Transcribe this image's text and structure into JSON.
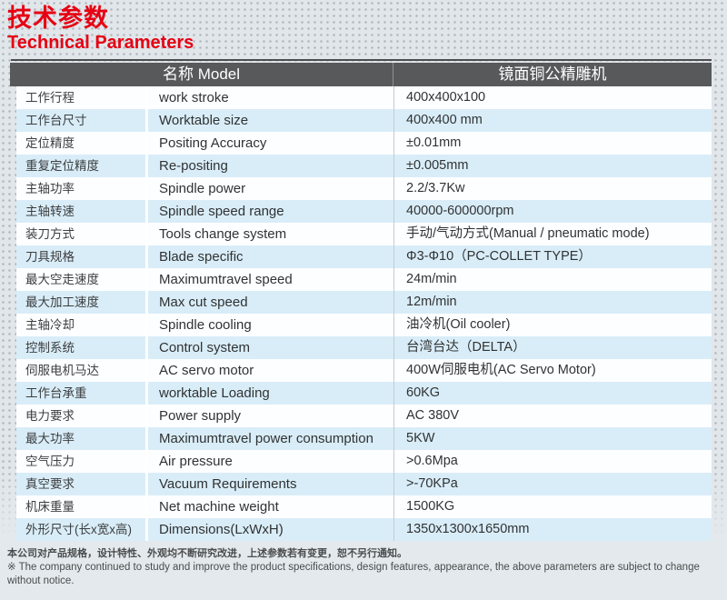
{
  "page": {
    "title_zh": "技术参数",
    "title_en": "Technical Parameters"
  },
  "colors": {
    "accent_red": "#e60012",
    "header_gray": "#58595b",
    "row_blue": "#d9edf8",
    "background": "#e1e6ea"
  },
  "table": {
    "header": {
      "model_label": "名称 Model",
      "model_value": "镜面铜公精雕机"
    },
    "rows": [
      {
        "zh": "工作行程",
        "en": "work stroke",
        "value": "400x400x100"
      },
      {
        "zh": "工作台尺寸",
        "en": "Worktable size",
        "value": "400x400 mm"
      },
      {
        "zh": "定位精度",
        "en": "Positing Accuracy",
        "value": "±0.01mm"
      },
      {
        "zh": "重复定位精度",
        "en": "Re-positing",
        "value": "±0.005mm"
      },
      {
        "zh": "主轴功率",
        "en": "Spindle power",
        "value": "2.2/3.7Kw"
      },
      {
        "zh": "主轴转速",
        "en": "Spindle speed range",
        "value": "40000-600000rpm"
      },
      {
        "zh": "装刀方式",
        "en": "Tools change system",
        "value": "手动/气动方式(Manual / pneumatic mode)"
      },
      {
        "zh": "刀具规格",
        "en": "Blade specific",
        "value": "Φ3-Φ10（PC-COLLET TYPE）"
      },
      {
        "zh": "最大空走速度",
        "en": "Maximumtravel speed",
        "value": "24m/min"
      },
      {
        "zh": "最大加工速度",
        "en": "Max cut speed",
        "value": "12m/min"
      },
      {
        "zh": "主轴冷却",
        "en": "Spindle cooling",
        "value": "油冷机(Oil cooler)"
      },
      {
        "zh": "控制系统",
        "en": "Control system",
        "value": "台湾台达（DELTA）"
      },
      {
        "zh": "伺服电机马达",
        "en": "AC servo motor",
        "value": "400W伺服电机(AC Servo Motor)"
      },
      {
        "zh": "工作台承重",
        "en": "worktable Loading",
        "value": "60KG"
      },
      {
        "zh": "电力要求",
        "en": "Power supply",
        "value": "AC 380V"
      },
      {
        "zh": "最大功率",
        "en": "Maximumtravel power consumption",
        "value": "5KW"
      },
      {
        "zh": "空气压力",
        "en": "Air pressure",
        "value": ">0.6Mpa"
      },
      {
        "zh": "真空要求",
        "en": "Vacuum Requirements",
        "value": ">-70KPa"
      },
      {
        "zh": "机床重量",
        "en": "Net machine weight",
        "value": "1500KG"
      },
      {
        "zh": "外形尺寸(长x宽x高)",
        "en": "Dimensions(LxWxH)",
        "value": "1350x1300x1650mm"
      }
    ]
  },
  "footer": {
    "note_zh": "本公司对产品规格，设计特性、外观均不断研究改进，上述参数若有变更，恕不另行通知。",
    "note_en": "※ The company continued to study and improve the product specifications, design features, appearance, the above parameters are subject to change without notice."
  }
}
